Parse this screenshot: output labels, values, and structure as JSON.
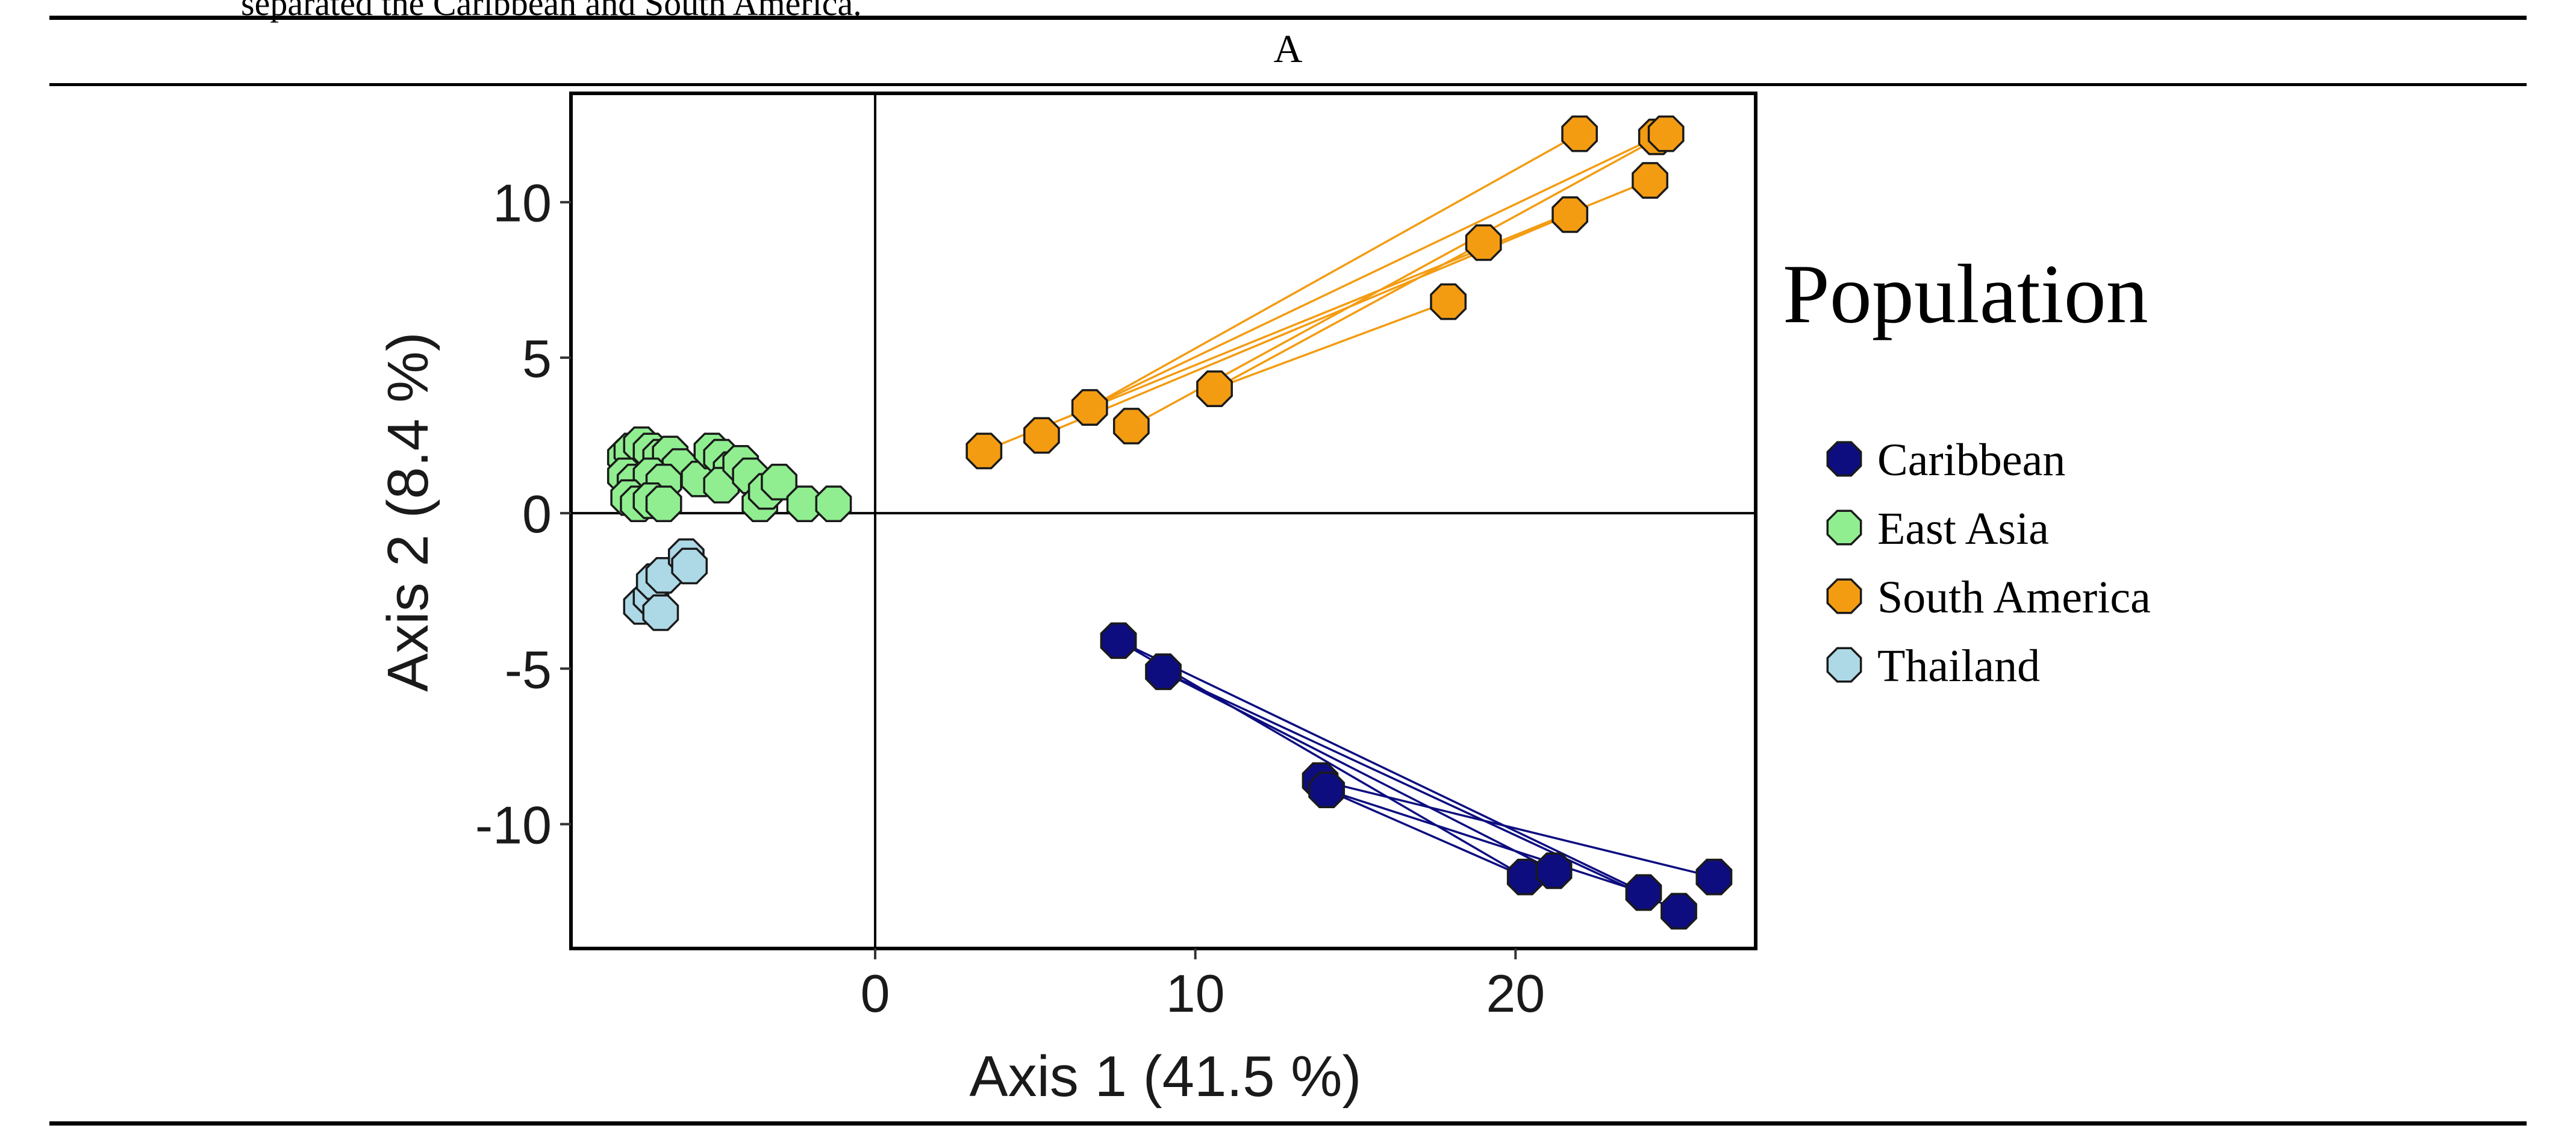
{
  "caption_fragment": "separated the Caribbean and South America.",
  "panel_label": "A",
  "chart_data": {
    "type": "scatter",
    "title": "",
    "xlabel": "Axis 1 (41.5 %)",
    "ylabel": "Axis 2 (8.4 %)",
    "xlim": [
      -9.5,
      27.5
    ],
    "ylim": [
      -14,
      13.5
    ],
    "xticks": [
      0,
      10,
      20
    ],
    "yticks": [
      -10,
      -5,
      0,
      5,
      10
    ],
    "reference_lines": {
      "x": 0,
      "y": 0
    },
    "grid": false,
    "legend_title": "Population",
    "legend_position": "right",
    "series": [
      {
        "name": "Caribbean",
        "color": "#0d0d80",
        "points": [
          [
            7.6,
            -4.1
          ],
          [
            9.0,
            -5.1
          ],
          [
            13.9,
            -8.6
          ],
          [
            14.1,
            -8.9
          ],
          [
            20.3,
            -11.7
          ],
          [
            21.2,
            -11.5
          ],
          [
            24.0,
            -12.2
          ],
          [
            25.1,
            -12.8
          ],
          [
            26.2,
            -11.7
          ]
        ],
        "links": [
          [
            0,
            6
          ],
          [
            0,
            4
          ],
          [
            1,
            7
          ],
          [
            1,
            5
          ],
          [
            2,
            8
          ],
          [
            3,
            6
          ],
          [
            3,
            4
          ]
        ]
      },
      {
        "name": "East Asia",
        "color": "#90ee90",
        "points": [
          [
            -7.8,
            1.8
          ],
          [
            -7.6,
            2.0
          ],
          [
            -7.3,
            2.2
          ],
          [
            -7.0,
            2.0
          ],
          [
            -6.7,
            1.8
          ],
          [
            -6.4,
            1.9
          ],
          [
            -6.1,
            1.5
          ],
          [
            -7.8,
            1.2
          ],
          [
            -7.5,
            1.0
          ],
          [
            -7.0,
            1.2
          ],
          [
            -6.6,
            1.0
          ],
          [
            -7.7,
            0.5
          ],
          [
            -7.4,
            0.3
          ],
          [
            -7.0,
            0.4
          ],
          [
            -6.6,
            0.3
          ],
          [
            -5.5,
            1.1
          ],
          [
            -5.1,
            2.0
          ],
          [
            -4.8,
            1.8
          ],
          [
            -4.5,
            1.4
          ],
          [
            -4.8,
            0.9
          ],
          [
            -4.2,
            1.6
          ],
          [
            -3.9,
            1.2
          ],
          [
            -3.6,
            0.3
          ],
          [
            -3.4,
            0.7
          ],
          [
            -3.0,
            1.0
          ],
          [
            -2.2,
            0.3
          ],
          [
            -1.3,
            0.3
          ]
        ]
      },
      {
        "name": "South America",
        "color": "#f39c12",
        "points": [
          [
            3.4,
            2.0
          ],
          [
            5.2,
            2.5
          ],
          [
            6.7,
            3.4
          ],
          [
            8.0,
            2.8
          ],
          [
            10.6,
            4.0
          ],
          [
            17.9,
            6.8
          ],
          [
            19.0,
            8.7
          ],
          [
            21.7,
            9.6
          ],
          [
            22.0,
            12.2
          ],
          [
            24.2,
            10.7
          ],
          [
            24.4,
            12.1
          ],
          [
            24.7,
            12.2
          ]
        ],
        "links": [
          [
            0,
            9
          ],
          [
            1,
            7
          ],
          [
            2,
            8
          ],
          [
            2,
            10
          ],
          [
            3,
            11
          ],
          [
            4,
            6
          ],
          [
            4,
            5
          ]
        ]
      },
      {
        "name": "Thailand",
        "color": "#add8e6",
        "points": [
          [
            -7.3,
            -3.0
          ],
          [
            -7.0,
            -2.7
          ],
          [
            -6.9,
            -2.2
          ],
          [
            -6.7,
            -3.2
          ],
          [
            -6.6,
            -2.0
          ],
          [
            -5.9,
            -1.4
          ],
          [
            -5.8,
            -1.7
          ]
        ]
      }
    ]
  }
}
